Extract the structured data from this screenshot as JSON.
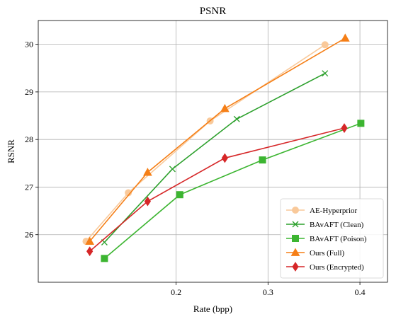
{
  "chart_data": {
    "type": "line",
    "title": "PSNR",
    "xlabel": "Rate (bpp)",
    "ylabel": "RSNR",
    "xlim": [
      0.05,
      0.43
    ],
    "ylim": [
      25.0,
      30.5
    ],
    "xticks": [
      0.2,
      0.3,
      0.4
    ],
    "xtick_labels": [
      "0.2",
      "0.3",
      "0.4"
    ],
    "yticks": [
      26,
      27,
      28,
      29,
      30
    ],
    "ytick_labels": [
      "26",
      "27",
      "28",
      "29",
      "30"
    ],
    "grid": true,
    "legend_position": "lower-right",
    "series": [
      {
        "name": "AE-Hyperprior",
        "color": "#f9c99a",
        "marker": "circle",
        "x": [
          0.102,
          0.148,
          0.237,
          0.362
        ],
        "y": [
          25.86,
          26.88,
          28.39,
          29.99
        ]
      },
      {
        "name": "BAvAFT (Clean)",
        "color": "#2ca02c",
        "marker": "x",
        "x": [
          0.122,
          0.196,
          0.266,
          0.362
        ],
        "y": [
          25.84,
          27.38,
          28.43,
          29.39
        ]
      },
      {
        "name": "BAvAFT (Poison)",
        "color": "#3cb531",
        "marker": "square",
        "x": [
          0.122,
          0.204,
          0.294,
          0.401
        ],
        "y": [
          25.5,
          26.84,
          27.57,
          28.34
        ]
      },
      {
        "name": "Ours (Full)",
        "color": "#f57f17",
        "marker": "triangle",
        "x": [
          0.106,
          0.169,
          0.253,
          0.384
        ],
        "y": [
          25.86,
          27.31,
          28.65,
          30.13
        ]
      },
      {
        "name": "Ours (Encrypted)",
        "color": "#d62728",
        "marker": "diamond",
        "x": [
          0.106,
          0.169,
          0.253,
          0.383
        ],
        "y": [
          25.65,
          26.7,
          27.61,
          28.24
        ]
      }
    ]
  }
}
